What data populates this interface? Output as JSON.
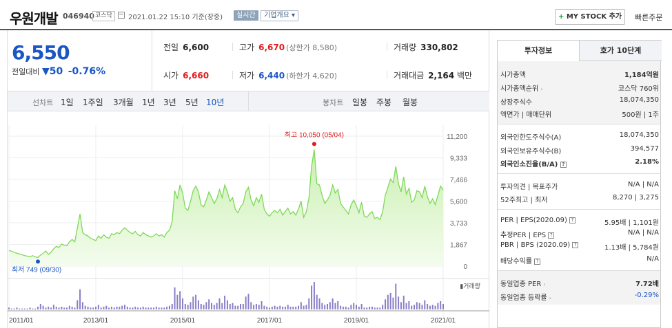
{
  "header": {
    "company": "우원개발",
    "code": "046940",
    "market": "코스닥",
    "datetime": "2021.01.22 15:10 기준(장중)",
    "realtime": "실시간",
    "overview": "기업개요 ▾",
    "mystock_plus": "+",
    "mystock": "MY STOCK 추가",
    "quick_order": "빠른주문"
  },
  "quote": {
    "price": "6,550",
    "change_label": "전일대비",
    "change_arrow": "▼",
    "change": "50",
    "change_pct": "-0.76%",
    "prev_label": "전일",
    "prev": "6,600",
    "high_label": "고가",
    "high": "6,670",
    "upper_limit": "(상한가 8,580)",
    "volume_label": "거래량",
    "volume": "330,802",
    "open_label": "시가",
    "open": "6,660",
    "low_label": "저가",
    "low": "6,440",
    "lower_limit": "(하한가 4,620)",
    "amount_label": "거래대금",
    "amount": "2,164",
    "amount_unit": "백만"
  },
  "periods": {
    "line_label": "선차트",
    "line_items": [
      "1일",
      "1주일",
      "3개월",
      "1년",
      "3년",
      "5년",
      "10년"
    ],
    "selected": "10년",
    "candle_label": "봉차트",
    "candle_items": [
      "일봉",
      "주봉",
      "월봉"
    ]
  },
  "chart_data": {
    "type": "area",
    "x_ticks": [
      "2011/01",
      "2013/01",
      "2015/01",
      "2017/01",
      "2019/01",
      "2021/01"
    ],
    "y_ticks": [
      "11,200",
      "9,333",
      "7,466",
      "5,600",
      "3,733",
      "1,867",
      "0"
    ],
    "ylim": [
      0,
      11200
    ],
    "max_label": "최고 10,050 (05/04)",
    "min_label": "최저 749 (09/30)",
    "volume_label": "거래량",
    "colors": {
      "line": "#7ed957",
      "fill_top": "#c9f0b0",
      "fill_bottom": "#f4fcee",
      "volume": "#8a7dc6"
    },
    "series": [
      {
        "values": [
          1350,
          1280,
          1200,
          1100,
          1050,
          980,
          900,
          860,
          820,
          900,
          780,
          749,
          950,
          1100,
          1300,
          1000,
          1200,
          1500,
          1700,
          1600,
          1900,
          1800,
          1750,
          2100,
          2300,
          2100,
          3300,
          4500,
          2900,
          2700,
          2600,
          2400,
          2300,
          2200,
          2600,
          2400,
          2700,
          2500,
          2400,
          2800,
          2700,
          2900,
          2800,
          3100,
          3300,
          3100,
          2900,
          2800,
          3000,
          2700,
          2600,
          2900,
          2700,
          2600,
          2500,
          2600,
          2800,
          2600,
          2700,
          2500,
          2900,
          3100,
          3800,
          6500,
          5800,
          7000,
          6300,
          5000,
          4800,
          5600,
          6500,
          6900,
          6400,
          5300,
          5100,
          5700,
          6400,
          5900,
          5400,
          5800,
          6600,
          5900,
          7000,
          6400,
          5600,
          5900,
          4900,
          4600,
          5100,
          5400,
          6400,
          6800,
          5700,
          5200,
          5900,
          5500,
          6200,
          4900,
          4500,
          4300,
          4600,
          4800,
          4600,
          4900,
          4400,
          4700,
          5000,
          4500,
          4700,
          4400,
          4900,
          5600,
          4200,
          4700,
          5900,
          8600,
          10050,
          7100,
          7000,
          6100,
          5400,
          5700,
          6100,
          7000,
          6300,
          6600,
          5400,
          5100,
          4800,
          4500,
          5300,
          5700,
          5200,
          4600,
          5500,
          4300,
          4200,
          4500,
          4700,
          4100,
          4200,
          4000,
          4700,
          6100,
          6800,
          7500,
          7200,
          8600,
          7100,
          6400,
          7700,
          6200,
          6700,
          5500,
          5700,
          6500,
          6400,
          5900,
          6900,
          6000,
          5400,
          5800,
          5300,
          6100,
          6900,
          6550
        ]
      }
    ],
    "volume": [
      2,
      1,
      1,
      2,
      1,
      1,
      1,
      1,
      2,
      1,
      1,
      3,
      6,
      4,
      2,
      3,
      2,
      5,
      3,
      2,
      3,
      2,
      2,
      4,
      3,
      2,
      10,
      22,
      8,
      4,
      3,
      2,
      2,
      3,
      5,
      2,
      3,
      4,
      2,
      3,
      2,
      3,
      3,
      4,
      5,
      3,
      2,
      2,
      3,
      2,
      2,
      3,
      2,
      2,
      2,
      2,
      3,
      2,
      2,
      2,
      3,
      4,
      6,
      24,
      16,
      20,
      12,
      6,
      5,
      8,
      14,
      16,
      10,
      6,
      5,
      8,
      11,
      7,
      5,
      7,
      12,
      7,
      15,
      10,
      6,
      7,
      4,
      4,
      6,
      6,
      14,
      17,
      8,
      5,
      6,
      5,
      9,
      4,
      3,
      2,
      3,
      4,
      3,
      4,
      3,
      3,
      5,
      3,
      3,
      3,
      4,
      8,
      4,
      5,
      12,
      26,
      30,
      16,
      12,
      7,
      5,
      6,
      8,
      12,
      7,
      9,
      4,
      3,
      3,
      2,
      5,
      7,
      5,
      3,
      6,
      2,
      2,
      3,
      3,
      2,
      2,
      2,
      5,
      11,
      16,
      18,
      13,
      28,
      14,
      8,
      15,
      7,
      9,
      4,
      5,
      8,
      7,
      5,
      10,
      6,
      4,
      5,
      4,
      7,
      9,
      6
    ]
  },
  "invest": {
    "tab1": "투자정보",
    "tab2": "호가 10단계",
    "market_cap_label": "시가총액",
    "market_cap": "1,184억원",
    "rank_label": "시가총액순위",
    "rank": "코스닥 760위",
    "shares_label": "상장주식수",
    "shares": "18,074,350",
    "par_label": "액면가 | 매매단위",
    "par": "500원 | 1주",
    "foreign_limit_label": "외국인한도주식수(A)",
    "foreign_limit": "18,074,350",
    "foreign_hold_label": "외국인보유주식수(B)",
    "foreign_hold": "394,577",
    "foreign_ratio_label": "외국인소진율(B/A)",
    "foreign_ratio": "2.18%",
    "opinion_label": "투자의견 | 목표주가",
    "opinion": "N/A | N/A",
    "w52_label": "52주최고 | 최저",
    "w52": "8,270 | 3,275",
    "per_label": "PER | EPS(2020.09)",
    "per": "5.95배 | 1,101원",
    "est_per_label": "추정PER | EPS",
    "est_per": "N/A | N/A",
    "pbr_label": "PBR | BPS (2020.09)",
    "pbr": "1.13배 | 5,784원",
    "div_label": "배당수익률",
    "div": "N/A",
    "sector_per_label": "동일업종 PER",
    "sector_per": "7.72배",
    "sector_change_label": "동일업종 등락률",
    "sector_change": "-0.29%"
  }
}
